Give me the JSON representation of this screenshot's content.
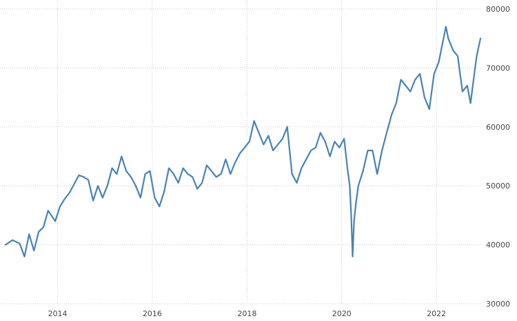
{
  "chart_data": {
    "type": "line",
    "title": "",
    "xlabel": "",
    "ylabel": "",
    "x_range": [
      2012.9,
      2022.93
    ],
    "ylim": [
      30000,
      80000
    ],
    "grid": true,
    "legend": "none",
    "x_ticks": [
      {
        "value": 2014,
        "label": "2014"
      },
      {
        "value": 2016,
        "label": "2016"
      },
      {
        "value": 2018,
        "label": "2018"
      },
      {
        "value": 2020,
        "label": "2020"
      },
      {
        "value": 2022,
        "label": "2022"
      }
    ],
    "y_ticks": [
      {
        "value": 30000,
        "label": "30000"
      },
      {
        "value": 40000,
        "label": "40000"
      },
      {
        "value": 50000,
        "label": "50000"
      },
      {
        "value": 60000,
        "label": "60000"
      },
      {
        "value": 70000,
        "label": "70000"
      },
      {
        "value": 80000,
        "label": "80000"
      }
    ],
    "series": [
      {
        "color": "#4682b4",
        "x": [
          2012.9,
          2013.05,
          2013.2,
          2013.3,
          2013.4,
          2013.5,
          2013.6,
          2013.7,
          2013.8,
          2013.95,
          2014.05,
          2014.15,
          2014.25,
          2014.35,
          2014.45,
          2014.55,
          2014.65,
          2014.75,
          2014.85,
          2014.95,
          2015.05,
          2015.15,
          2015.25,
          2015.35,
          2015.45,
          2015.55,
          2015.65,
          2015.75,
          2015.85,
          2015.95,
          2016.05,
          2016.15,
          2016.25,
          2016.35,
          2016.45,
          2016.55,
          2016.65,
          2016.75,
          2016.85,
          2016.95,
          2017.05,
          2017.15,
          2017.25,
          2017.35,
          2017.45,
          2017.55,
          2017.65,
          2017.75,
          2017.85,
          2017.95,
          2018.05,
          2018.15,
          2018.25,
          2018.35,
          2018.45,
          2018.55,
          2018.65,
          2018.75,
          2018.85,
          2018.95,
          2019.05,
          2019.15,
          2019.25,
          2019.35,
          2019.45,
          2019.55,
          2019.65,
          2019.75,
          2019.85,
          2019.95,
          2020.05,
          2020.12,
          2020.17,
          2020.2,
          2020.23,
          2020.26,
          2020.3,
          2020.35,
          2020.45,
          2020.55,
          2020.65,
          2020.75,
          2020.85,
          2020.95,
          2021.05,
          2021.15,
          2021.25,
          2021.35,
          2021.45,
          2021.55,
          2021.65,
          2021.75,
          2021.85,
          2021.95,
          2022.05,
          2022.15,
          2022.2,
          2022.25,
          2022.35,
          2022.45,
          2022.55,
          2022.65,
          2022.72,
          2022.8,
          2022.85,
          2022.93
        ],
        "y": [
          40000,
          40800,
          40200,
          38000,
          41800,
          39000,
          42200,
          43000,
          45800,
          44000,
          46500,
          47800,
          48800,
          50300,
          51800,
          51500,
          51000,
          47500,
          50000,
          48000,
          50000,
          53000,
          52000,
          55000,
          52500,
          51500,
          50000,
          48000,
          52000,
          52500,
          48000,
          46500,
          49000,
          53000,
          52000,
          50500,
          53000,
          52000,
          51500,
          49500,
          50500,
          53500,
          52500,
          51500,
          52000,
          54500,
          52000,
          54000,
          55500,
          56500,
          57500,
          61000,
          59000,
          57000,
          58500,
          56000,
          57000,
          58000,
          60000,
          52000,
          50500,
          53000,
          54500,
          56000,
          56500,
          59000,
          57500,
          55000,
          57500,
          56500,
          58000,
          53000,
          50000,
          45000,
          38000,
          44000,
          47000,
          50000,
          52500,
          56000,
          56000,
          52000,
          56000,
          59000,
          62000,
          64000,
          68000,
          67000,
          66000,
          68000,
          69000,
          65000,
          63000,
          69000,
          71000,
          75000,
          77000,
          75000,
          73000,
          72000,
          66000,
          67000,
          64000,
          69000,
          72000,
          75000
        ]
      }
    ]
  }
}
